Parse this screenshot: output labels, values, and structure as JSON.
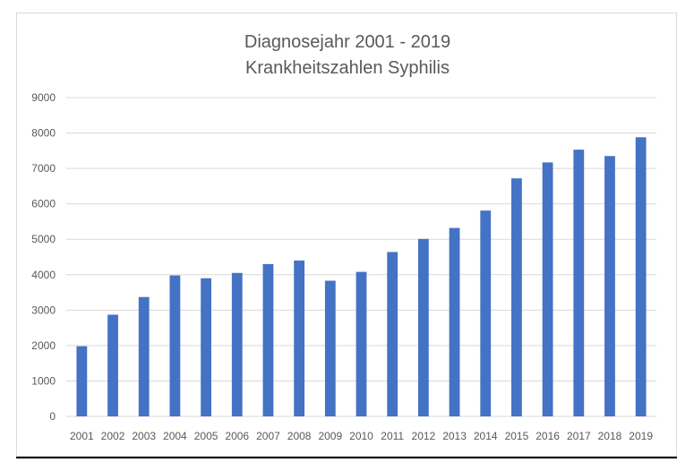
{
  "chart_data": {
    "type": "bar",
    "title_lines": [
      "Diagnosejahr 2001 - 2019",
      "Krankheitszahlen Syphilis"
    ],
    "xlabel": "",
    "ylabel": "",
    "ylim": [
      0,
      9000
    ],
    "yticks": [
      0,
      1000,
      2000,
      3000,
      4000,
      5000,
      6000,
      7000,
      8000,
      9000
    ],
    "grid": true,
    "legend": "none",
    "categories": [
      "2001",
      "2002",
      "2003",
      "2004",
      "2005",
      "2006",
      "2007",
      "2008",
      "2009",
      "2010",
      "2011",
      "2012",
      "2013",
      "2014",
      "2015",
      "2016",
      "2017",
      "2018",
      "2019"
    ],
    "values": [
      1980,
      2870,
      3370,
      3980,
      3900,
      4050,
      4300,
      4400,
      3830,
      4080,
      4640,
      5010,
      5320,
      5810,
      6720,
      7170,
      7530,
      7350,
      7880
    ],
    "colors": {
      "bar": "#4472C4",
      "grid": "#d9d9d9",
      "axis": "#d9d9d9",
      "text": "#595959"
    }
  }
}
